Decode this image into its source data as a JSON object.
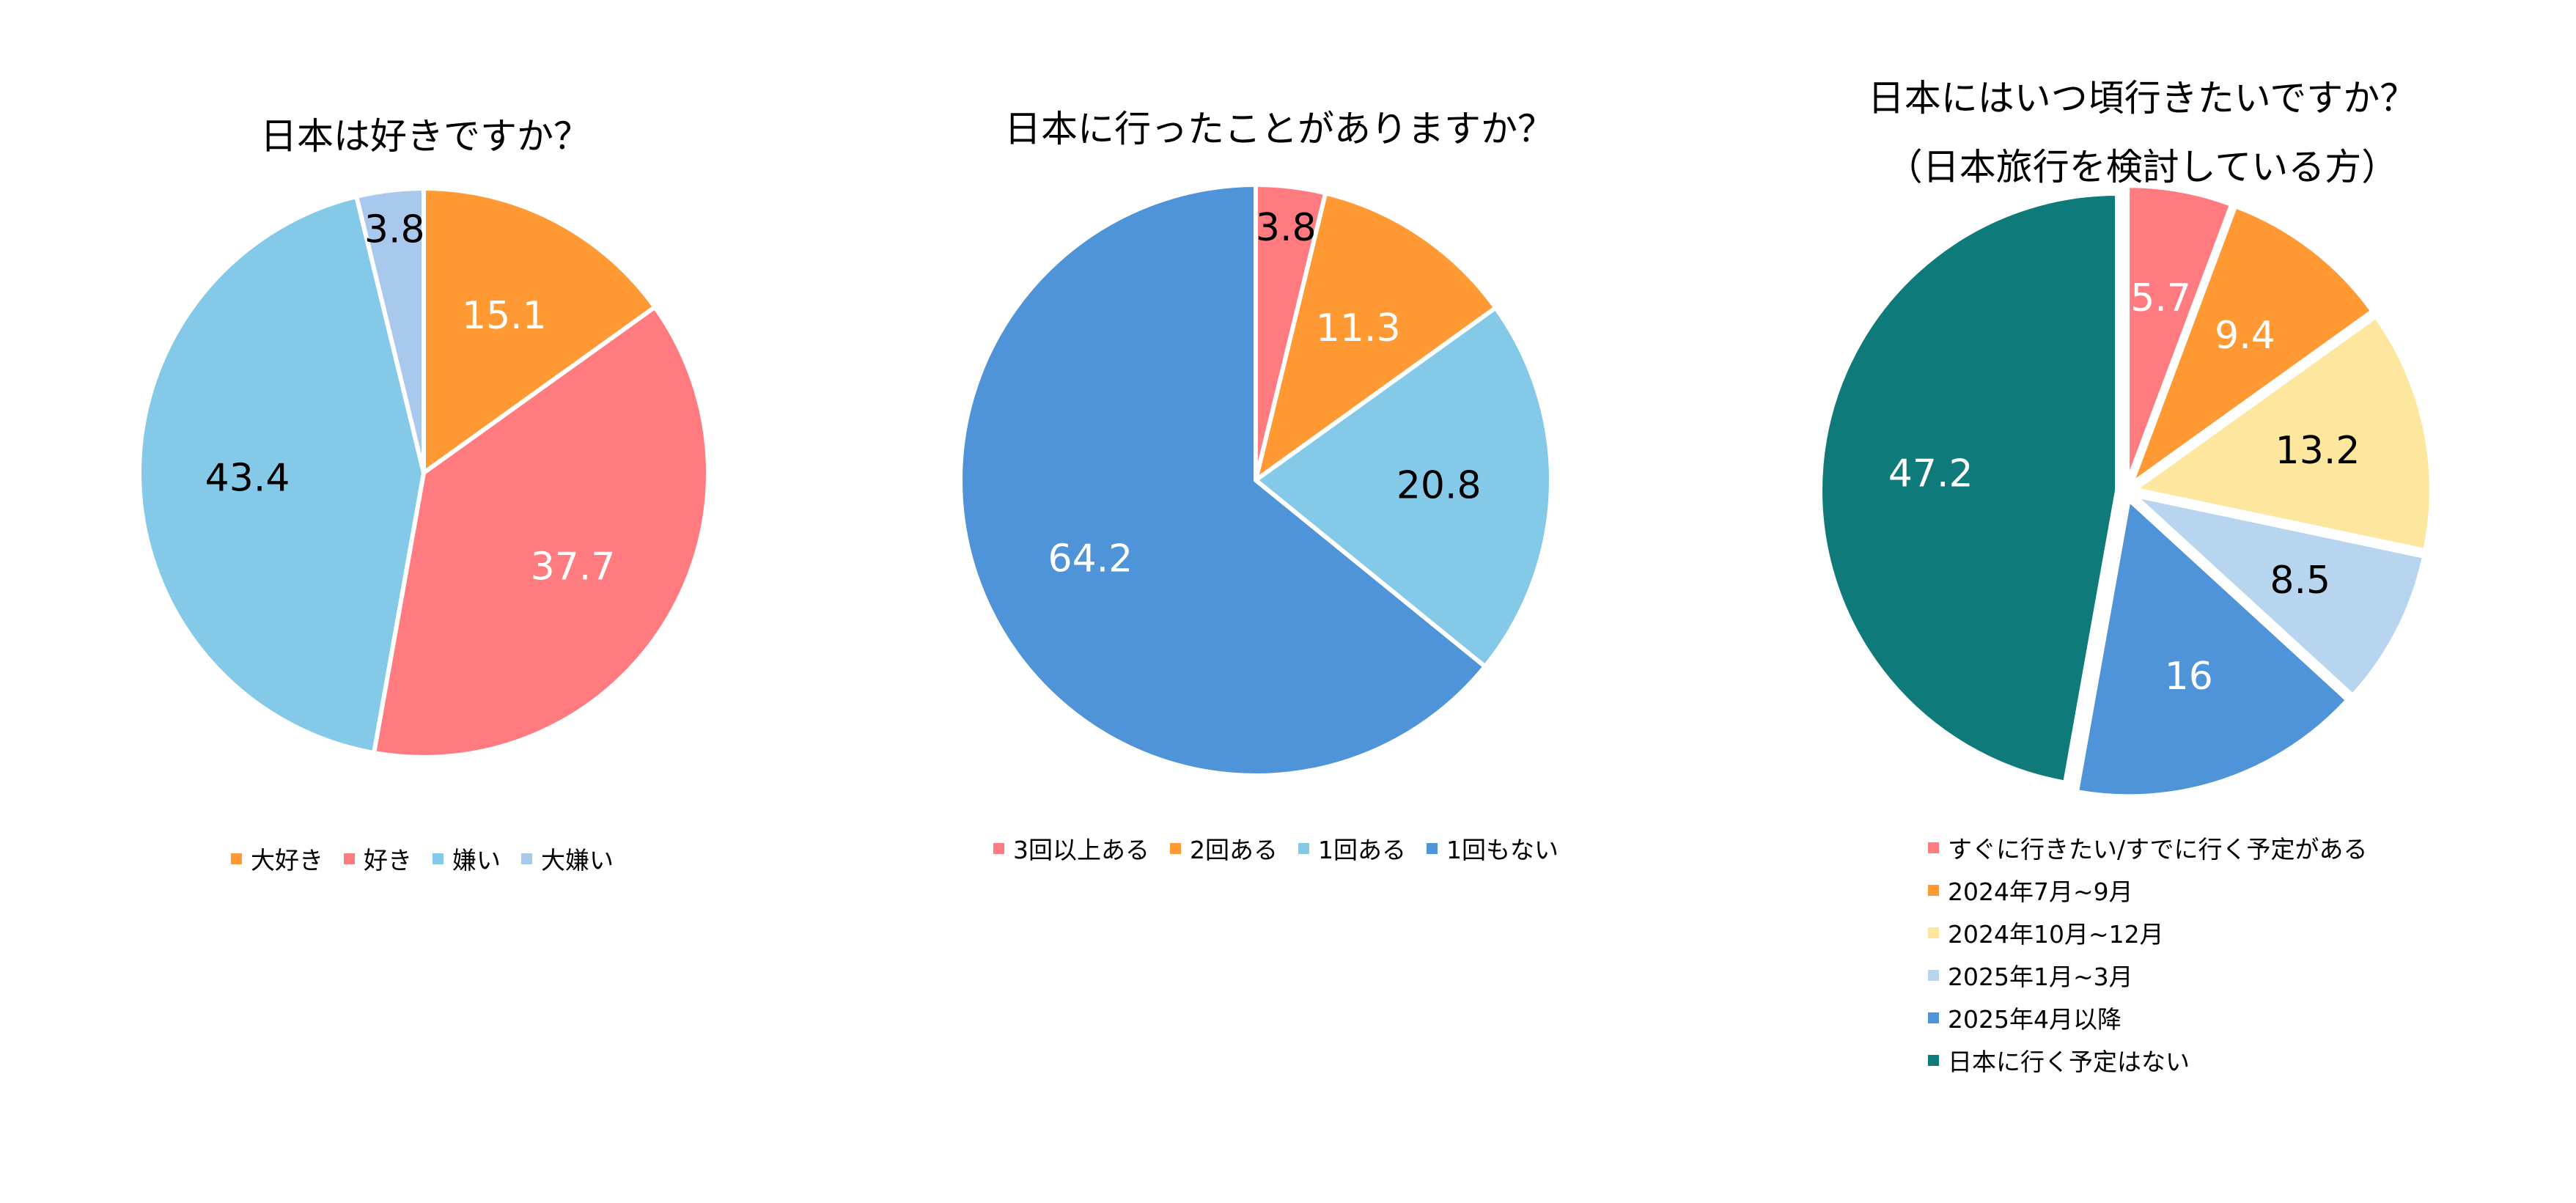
{
  "chart_data": [
    {
      "type": "pie",
      "title": "日本は好きですか？",
      "categories": [
        "大好き",
        "好き",
        "嫌い",
        "大嫌い"
      ],
      "values": [
        15.1,
        37.7,
        43.4,
        3.8
      ],
      "labels": [
        "15.1",
        "37.7",
        "43.4",
        "3.8"
      ],
      "colors": [
        "#FF9933",
        "#FF7B80",
        "#85C9E8",
        "#A9C9EC"
      ],
      "label_colors": [
        "#ffffff",
        "#ffffff",
        "#000000",
        "#000000"
      ],
      "legend": "bottom"
    },
    {
      "type": "pie",
      "title": "日本に行ったことがありますか？",
      "categories": [
        "3回以上ある",
        "2回ある",
        "1回ある",
        "1回もない"
      ],
      "values": [
        3.8,
        11.3,
        20.8,
        64.2
      ],
      "labels": [
        "3.8",
        "11.3",
        "20.8",
        "64.2"
      ],
      "colors": [
        "#FF7B80",
        "#FF9933",
        "#85C9E8",
        "#4F94D9"
      ],
      "label_colors": [
        "#000000",
        "#ffffff",
        "#000000",
        "#ffffff"
      ],
      "legend": "bottom"
    },
    {
      "type": "pie",
      "title": "日本にはいつ頃行きたいですか？",
      "subtitle": "（日本旅行を検討している方）",
      "categories": [
        "すぐに行きたい/すでに行く予定がある",
        "2024年7月~9月",
        "2024年10月~12月",
        "2025年1月~3月",
        "2025年4月以降",
        "日本に行く予定はない"
      ],
      "values": [
        5.7,
        9.4,
        13.2,
        8.5,
        16,
        47.2
      ],
      "labels": [
        "5.7",
        "9.4",
        "13.2",
        "8.5",
        "16",
        "47.2"
      ],
      "colors": [
        "#FF7B80",
        "#FF9933",
        "#FDE69E",
        "#B8D5F0",
        "#4F94D9",
        "#0F7A7A"
      ],
      "label_colors": [
        "#ffffff",
        "#ffffff",
        "#000000",
        "#000000",
        "#ffffff",
        "#ffffff"
      ],
      "legend": "bottom"
    }
  ]
}
